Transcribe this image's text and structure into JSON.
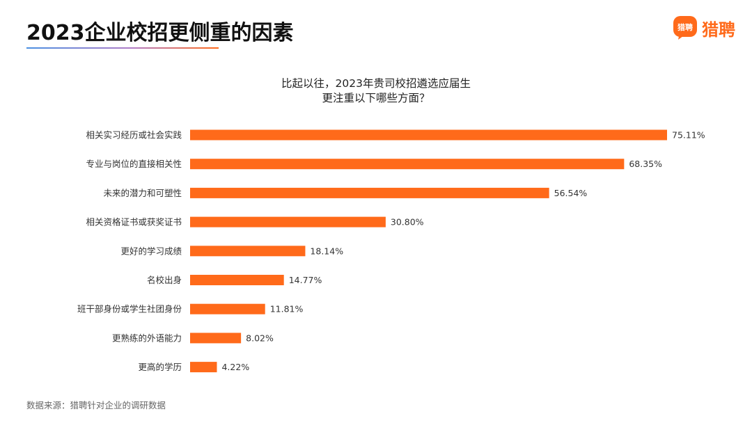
{
  "header": {
    "title": "2023企业校招更侧重的因素",
    "brand_name": "猎聘",
    "brand_icon_text": "猎聘",
    "brand_icon": "liepin-logo-icon",
    "accent_color": "#ff6a1a"
  },
  "chart_data": {
    "type": "bar",
    "orientation": "horizontal",
    "title_lines": [
      "比起以往，2023年贵司校招遴选应届生",
      "更注重以下哪些方面？"
    ],
    "categories": [
      "相关实习经历或社会实践",
      "专业与岗位的直接相关性",
      "未来的潜力和可塑性",
      "相关资格证书或获奖证书",
      "更好的学习成绩",
      "名校出身",
      "班干部身份或学生社团身份",
      "更熟练的外语能力",
      "更高的学历"
    ],
    "values": [
      75.11,
      68.35,
      56.54,
      30.8,
      18.14,
      14.77,
      11.81,
      8.02,
      4.22
    ],
    "value_labels": [
      "75.11%",
      "68.35%",
      "56.54%",
      "30.80%",
      "18.14%",
      "14.77%",
      "11.81%",
      "8.02%",
      "4.22%"
    ],
    "unit": "%",
    "bar_color": "#ff6a1a",
    "xlim": [
      0,
      80
    ],
    "grid": false
  },
  "footer": {
    "source": "数据来源：猎聘针对企业的调研数据"
  }
}
